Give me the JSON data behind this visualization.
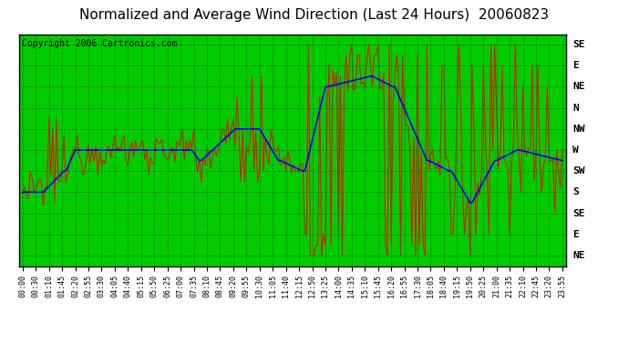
{
  "title": "Normalized and Average Wind Direction (Last 24 Hours)  20060823",
  "copyright": "Copyright 2006 Cartronics.com",
  "plot_bg_color": "#00CC00",
  "grid_color": "#008800",
  "y_tick_labels": [
    "NE",
    "E",
    "SE",
    "S",
    "SW",
    "W",
    "NW",
    "N",
    "NE",
    "E",
    "SE"
  ],
  "y_tick_vals": [
    1,
    2,
    3,
    4,
    5,
    6,
    7,
    8,
    9,
    10,
    11
  ],
  "x_tick_labels": [
    "00:00",
    "00:30",
    "01:10",
    "01:45",
    "02:20",
    "02:55",
    "03:30",
    "04:05",
    "04:40",
    "05:15",
    "05:50",
    "06:25",
    "07:00",
    "07:35",
    "08:10",
    "08:45",
    "09:20",
    "09:55",
    "10:30",
    "11:05",
    "11:40",
    "12:15",
    "12:50",
    "13:25",
    "14:00",
    "14:35",
    "15:10",
    "15:45",
    "16:20",
    "16:55",
    "17:30",
    "18:05",
    "18:40",
    "19:15",
    "19:50",
    "20:25",
    "21:00",
    "21:35",
    "22:10",
    "22:45",
    "23:20",
    "23:55"
  ],
  "red_line_color": "#FF0000",
  "blue_line_color": "#0000FF",
  "title_fontsize": 11,
  "copyright_fontsize": 7,
  "tick_fontsize": 6,
  "y_label_fontsize": 8
}
